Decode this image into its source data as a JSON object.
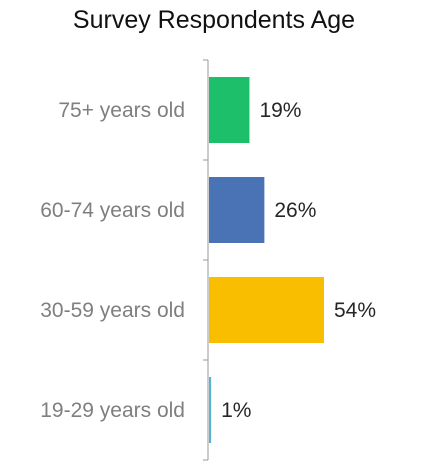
{
  "chart_data": {
    "type": "bar",
    "orientation": "horizontal",
    "title": "Survey Respondents Age",
    "categories": [
      "75+ years old",
      "60-74 years old",
      "30-59 years old",
      "19-29 years old"
    ],
    "values": [
      19,
      26,
      54,
      1
    ],
    "value_labels": [
      "19%",
      "26%",
      "54%",
      "1%"
    ],
    "colors": [
      "#1dbf6b",
      "#4a73b6",
      "#f9be00",
      "#5bb4cf"
    ],
    "xlim": [
      0,
      54
    ],
    "xlabel": "",
    "ylabel": "",
    "grid": false,
    "legend": "none"
  }
}
